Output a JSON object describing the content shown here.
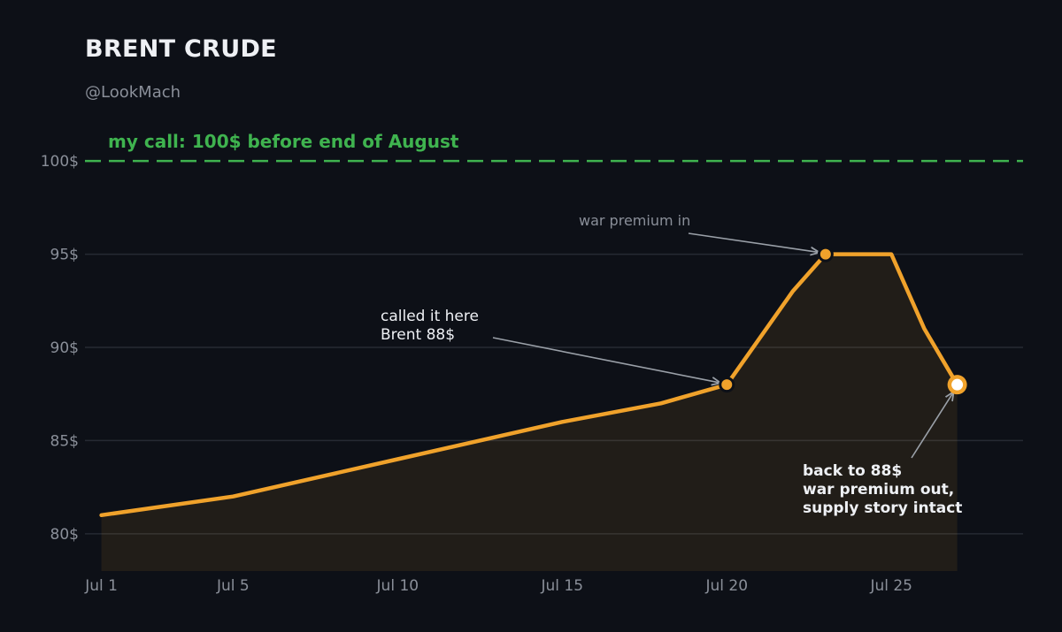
{
  "header": {
    "title": "BRENT CRUDE",
    "handle": "@LookMach"
  },
  "colors": {
    "background": "#0d1017",
    "line": "#f0a22b",
    "target": "#3fb34f",
    "grid": "#262a33",
    "axis_text": "#8a8f99",
    "annotation_text": "#eef0f4"
  },
  "chart_data": {
    "type": "line",
    "title": "BRENT CRUDE",
    "series": [
      {
        "x": [
          1,
          5,
          10,
          15,
          18,
          20,
          22,
          23,
          25,
          26,
          27
        ],
        "values": [
          81,
          82,
          84,
          86,
          87,
          88,
          93,
          95,
          95,
          91,
          88
        ]
      }
    ],
    "xlim": [
      0.5,
      29
    ],
    "ylim": [
      78,
      102
    ],
    "xticks": [
      1,
      5,
      10,
      15,
      20,
      25
    ],
    "xtick_labels": [
      "Jul 1",
      "Jul 5",
      "Jul 10",
      "Jul 15",
      "Jul 20",
      "Jul 25"
    ],
    "yticks": [
      80,
      85,
      90,
      95,
      100
    ],
    "ytick_labels": [
      "80$",
      "85$",
      "90$",
      "95$",
      "100$"
    ],
    "grid": true,
    "area_fill": true,
    "target_line": {
      "value": 100,
      "label": "my call: 100$ before end of August"
    },
    "markers": [
      {
        "x": 20,
        "y": 88,
        "style": "filled"
      },
      {
        "x": 23,
        "y": 95,
        "style": "filled"
      },
      {
        "x": 27,
        "y": 88,
        "style": "ring"
      }
    ],
    "annotations": [
      {
        "lines": [
          "called it here",
          "Brent 88$"
        ],
        "target": [
          20,
          88
        ],
        "bold": false,
        "muted": false
      },
      {
        "lines": [
          "war premium in"
        ],
        "target": [
          23,
          95
        ],
        "bold": false,
        "muted": true
      },
      {
        "lines": [
          "back to 88$",
          "war premium out,",
          "supply story intact"
        ],
        "target": [
          27,
          88
        ],
        "bold": true,
        "muted": false
      }
    ]
  }
}
